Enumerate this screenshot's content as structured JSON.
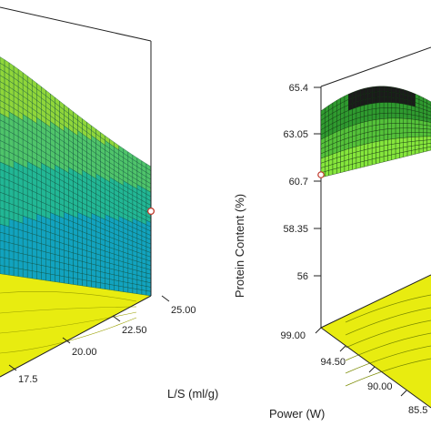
{
  "chart_data": [
    {
      "type": "surface3d",
      "title": "",
      "xlabel": "L/S (ml/g)",
      "ylabel": "",
      "x_ticks": [
        "17.5",
        "20.00",
        "22.50",
        "25.00"
      ],
      "xlim": [
        15,
        25
      ],
      "floor_contour_color": "#e8ec10",
      "surface_colors": [
        "#0aa9b8",
        "#38c47d",
        "#8ad63c"
      ],
      "design_point_marker": true
    },
    {
      "type": "surface3d",
      "title": "",
      "zlabel": "Protein Content  (%)",
      "z_ticks": [
        "65.4",
        "63.05",
        "60.7",
        "58.35",
        "56"
      ],
      "zlim": [
        56,
        65.4
      ],
      "xlabel": "Power (W)",
      "x_ticks": [
        "99.00",
        "94.50",
        "90.00",
        "85.5"
      ],
      "floor_contour_color": "#e8ec10",
      "surface_colors": [
        "#1a1a1a",
        "#2e9e2e",
        "#7fe63a"
      ],
      "design_point_marker": true
    }
  ]
}
